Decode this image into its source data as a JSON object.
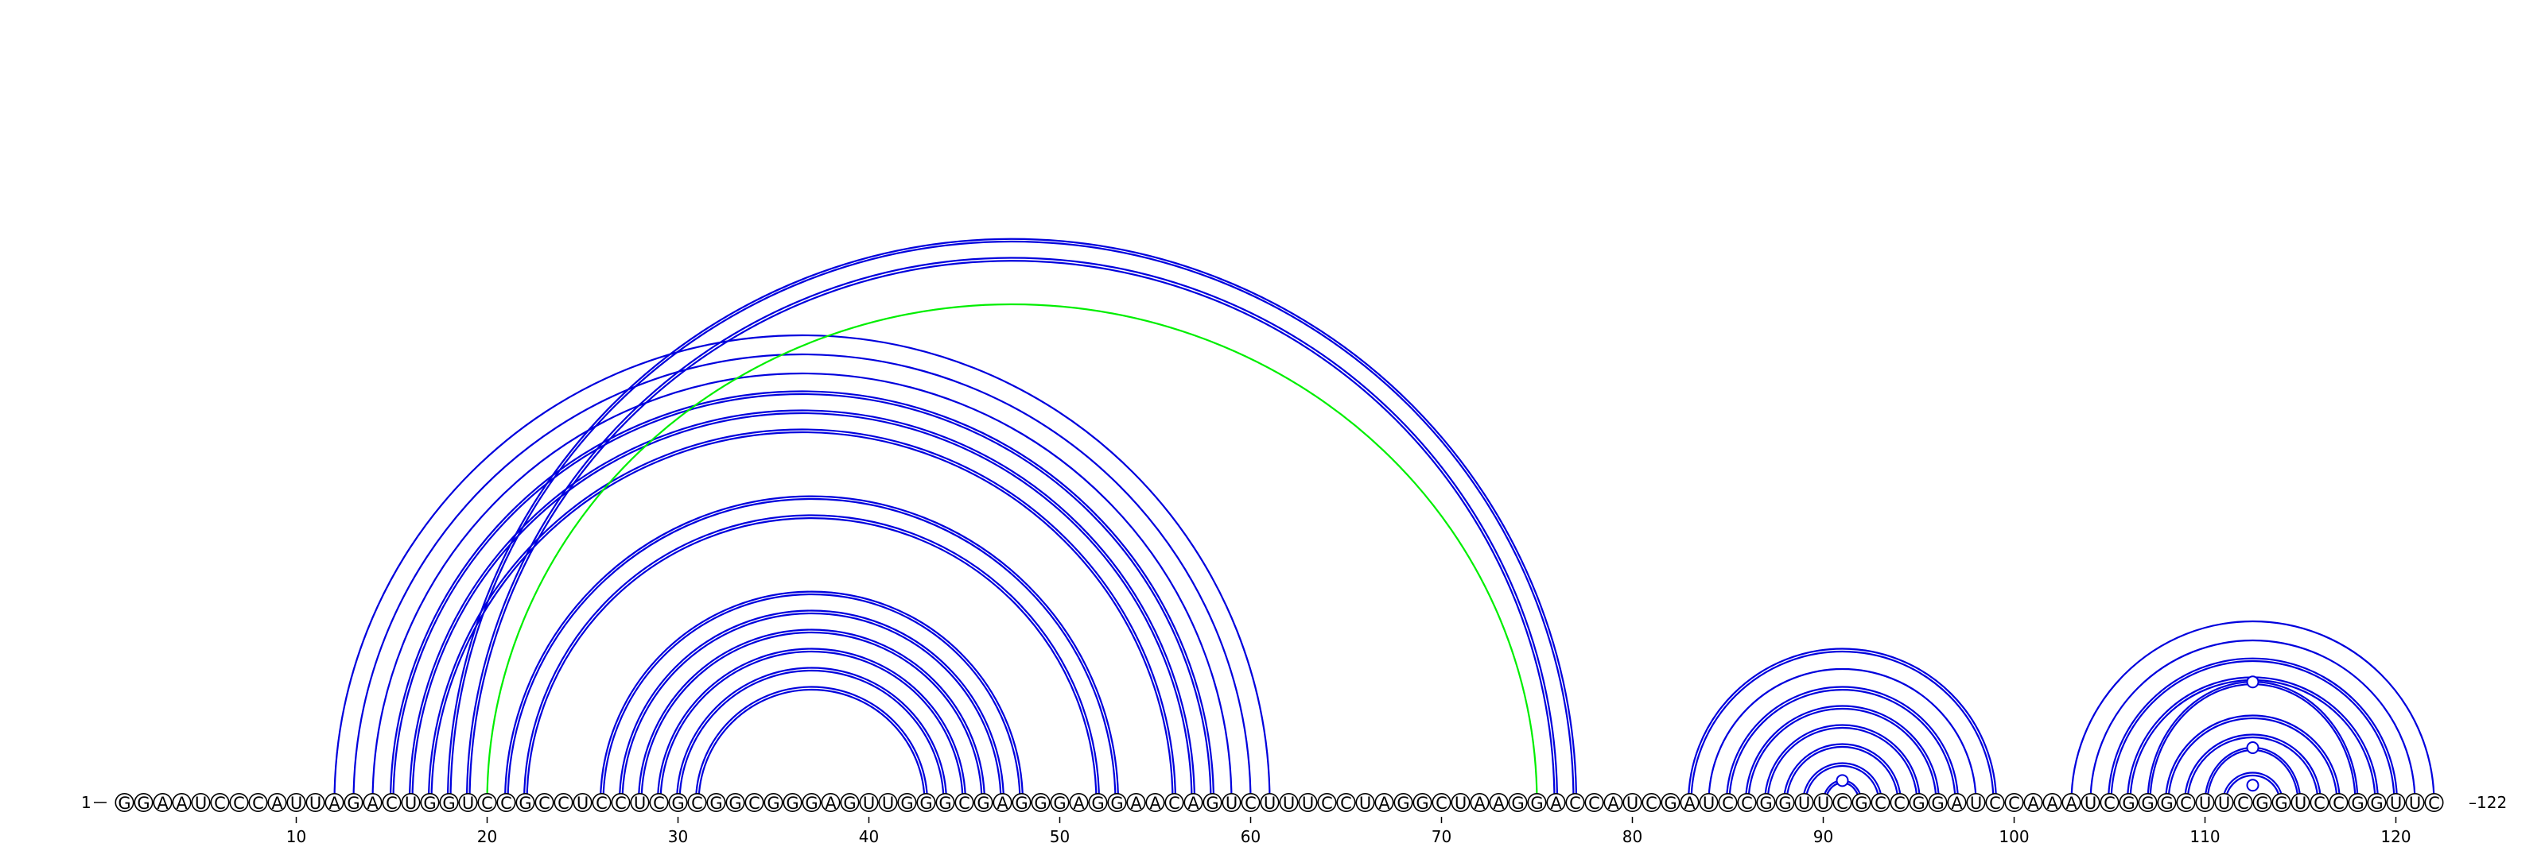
{
  "sequence": "GGAAUCCCAUUAGACUGGUCCGCCUCCUCGCGGCGGGAGUUGGGCGAGGGAGGAACAGUCUUUCCUAGGCUAAGGACCAUCGAUCCGGUUCGCCGGAUCCAAAUCGGGCUUCGGUCCGGUUC",
  "start_label": "1",
  "end_label": "122",
  "axis_ticks": [
    10,
    20,
    30,
    40,
    50,
    60,
    70,
    80,
    90,
    100,
    110,
    120
  ],
  "colors": {
    "pair": "#0000dd",
    "highlight": "#00ee00",
    "backbone": "#000000"
  },
  "pairs": [
    {
      "i": 12,
      "j": 61,
      "style": "single"
    },
    {
      "i": 13,
      "j": 60,
      "style": "single"
    },
    {
      "i": 14,
      "j": 59,
      "style": "single"
    },
    {
      "i": 15,
      "j": 58,
      "style": "double"
    },
    {
      "i": 16,
      "j": 57,
      "style": "double"
    },
    {
      "i": 17,
      "j": 56,
      "style": "double"
    },
    {
      "i": 18,
      "j": 77,
      "style": "double"
    },
    {
      "i": 19,
      "j": 76,
      "style": "double"
    },
    {
      "i": 20,
      "j": 75,
      "style": "highlight"
    },
    {
      "i": 21,
      "j": 53,
      "style": "double"
    },
    {
      "i": 22,
      "j": 52,
      "style": "double"
    },
    {
      "i": 26,
      "j": 48,
      "style": "double"
    },
    {
      "i": 27,
      "j": 47,
      "style": "double"
    },
    {
      "i": 28,
      "j": 46,
      "style": "double"
    },
    {
      "i": 29,
      "j": 45,
      "style": "double"
    },
    {
      "i": 30,
      "j": 44,
      "style": "double"
    },
    {
      "i": 31,
      "j": 43,
      "style": "double"
    },
    {
      "i": 83,
      "j": 99,
      "style": "double"
    },
    {
      "i": 84,
      "j": 98,
      "style": "single"
    },
    {
      "i": 85,
      "j": 97,
      "style": "double"
    },
    {
      "i": 86,
      "j": 96,
      "style": "double"
    },
    {
      "i": 87,
      "j": 95,
      "style": "double"
    },
    {
      "i": 88,
      "j": 94,
      "style": "double"
    },
    {
      "i": 89,
      "j": 93,
      "style": "double"
    },
    {
      "i": 90,
      "j": 92,
      "style": "wobble"
    },
    {
      "i": 103,
      "j": 122,
      "style": "single"
    },
    {
      "i": 104,
      "j": 121,
      "style": "single"
    },
    {
      "i": 105,
      "j": 120,
      "style": "double"
    },
    {
      "i": 106,
      "j": 119,
      "style": "double"
    },
    {
      "i": 107,
      "j": 118,
      "style": "wobble"
    },
    {
      "i": 108,
      "j": 117,
      "style": "double"
    },
    {
      "i": 109,
      "j": 116,
      "style": "double"
    },
    {
      "i": 110,
      "j": 115,
      "style": "wobble"
    },
    {
      "i": 111,
      "j": 114,
      "style": "double"
    },
    {
      "i": 112,
      "j": 113,
      "style": "wobble"
    }
  ]
}
